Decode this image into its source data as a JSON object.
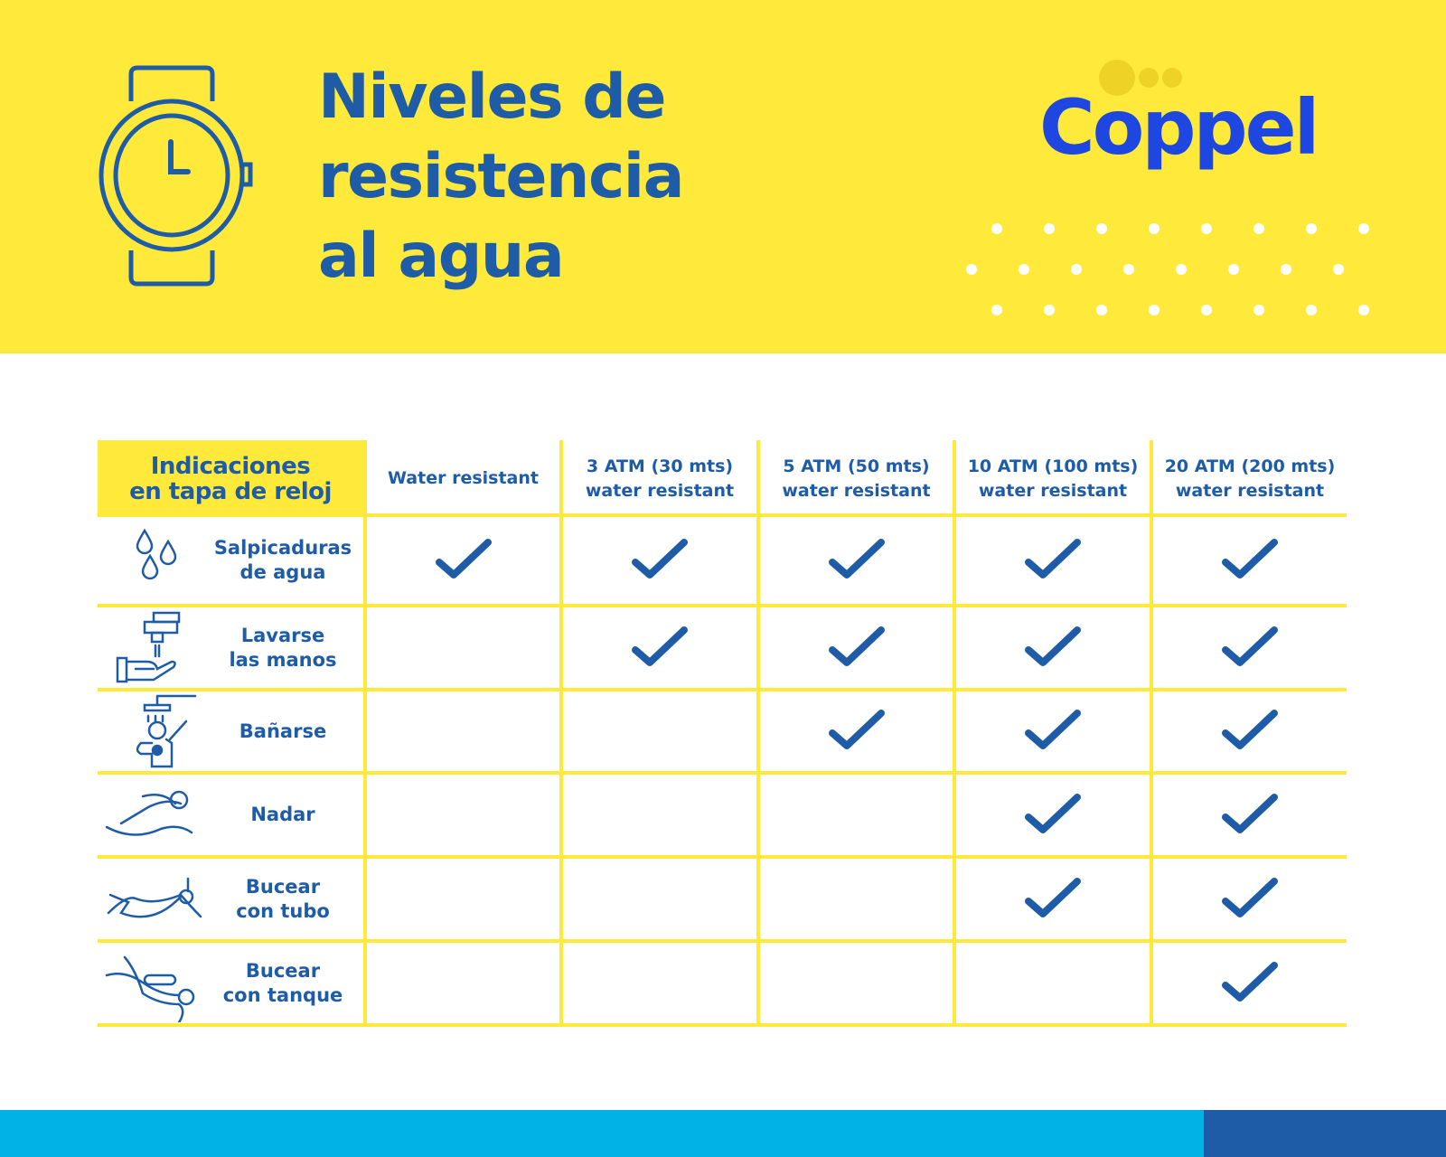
{
  "colors": {
    "yellow": "#ffea3b",
    "blue": "#1f5ca8",
    "logo_blue": "#1d47e0",
    "cyan": "#00b2e6"
  },
  "header": {
    "title_lines": [
      "Niveles de",
      "resistencia",
      "al agua"
    ],
    "icon": "watch-icon",
    "logo": "Coppel"
  },
  "table": {
    "columns": [
      "Indicaciones en tapa de reloj",
      "Water resistant",
      "3 ATM (30 mts) water resistant",
      "5 ATM (50 mts) water resistant",
      "10 ATM (100 mts) water resistant",
      "20 ATM (200 mts) water resistant"
    ],
    "column_lines": [
      [
        "Indicaciones",
        "en tapa de reloj"
      ],
      [
        "Water resistant"
      ],
      [
        "3 ATM (30 mts)",
        "water resistant"
      ],
      [
        "5 ATM (50 mts)",
        "water resistant"
      ],
      [
        "10 ATM (100 mts)",
        "water resistant"
      ],
      [
        "20 ATM (200 mts)",
        "water resistant"
      ]
    ],
    "rows": [
      {
        "activity": [
          "Salpicaduras",
          "de agua"
        ],
        "icon": "water-drops-icon",
        "checks": [
          true,
          true,
          true,
          true,
          true
        ]
      },
      {
        "activity": [
          "Lavarse",
          "las manos"
        ],
        "icon": "hand-washing-icon",
        "checks": [
          false,
          true,
          true,
          true,
          true
        ]
      },
      {
        "activity": [
          "Bañarse"
        ],
        "icon": "shower-icon",
        "checks": [
          false,
          false,
          true,
          true,
          true
        ]
      },
      {
        "activity": [
          "Nadar"
        ],
        "icon": "swimming-icon",
        "checks": [
          false,
          false,
          false,
          true,
          true
        ]
      },
      {
        "activity": [
          "Bucear",
          "con tubo"
        ],
        "icon": "snorkel-icon",
        "checks": [
          false,
          false,
          false,
          true,
          true
        ]
      },
      {
        "activity": [
          "Bucear",
          "con tanque"
        ],
        "icon": "scuba-icon",
        "checks": [
          false,
          false,
          false,
          false,
          true
        ]
      }
    ]
  }
}
